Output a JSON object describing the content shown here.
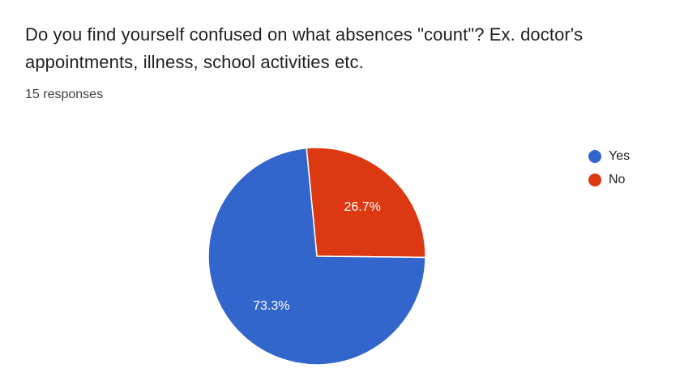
{
  "question": {
    "title": "Do you find yourself confused on what absences \"count\"? Ex. doctor's appointments, illness, school activities etc.",
    "responses": "15 responses"
  },
  "chart_data": {
    "type": "pie",
    "title": "Do you find yourself confused on what absences \"count\"? Ex. doctor's appointments, illness, school activities etc.",
    "categories": [
      "Yes",
      "No"
    ],
    "values": [
      73.3,
      26.7
    ],
    "labels": [
      "73.3%",
      "26.7%"
    ],
    "colors": [
      "#3366cc",
      "#dc3912"
    ],
    "legend_position": "right"
  }
}
